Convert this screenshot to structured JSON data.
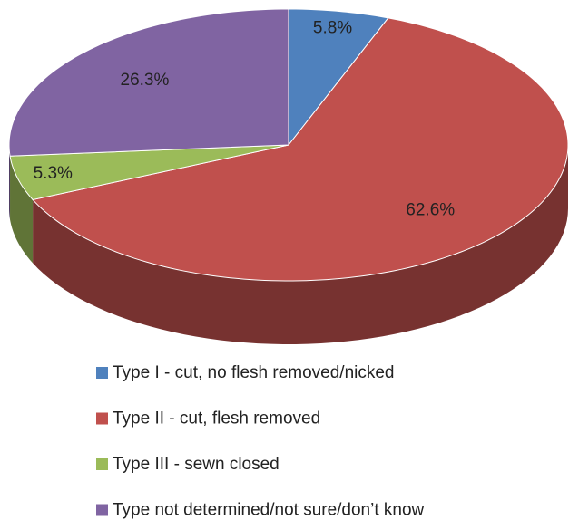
{
  "chart_data": {
    "type": "pie",
    "categories": [
      "Type I - cut, no flesh removed/nicked",
      "Type II - cut, flesh removed",
      "Type III - sewn closed",
      "Type not determined/not sure/don’t know"
    ],
    "values": [
      5.8,
      62.6,
      5.3,
      26.3
    ],
    "value_labels": [
      "5.8%",
      "62.6%",
      "5.3%",
      "26.3%"
    ],
    "colors": [
      "#4f81bd",
      "#c0504d",
      "#9bbb59",
      "#8064a2"
    ],
    "legend": "bottom"
  }
}
